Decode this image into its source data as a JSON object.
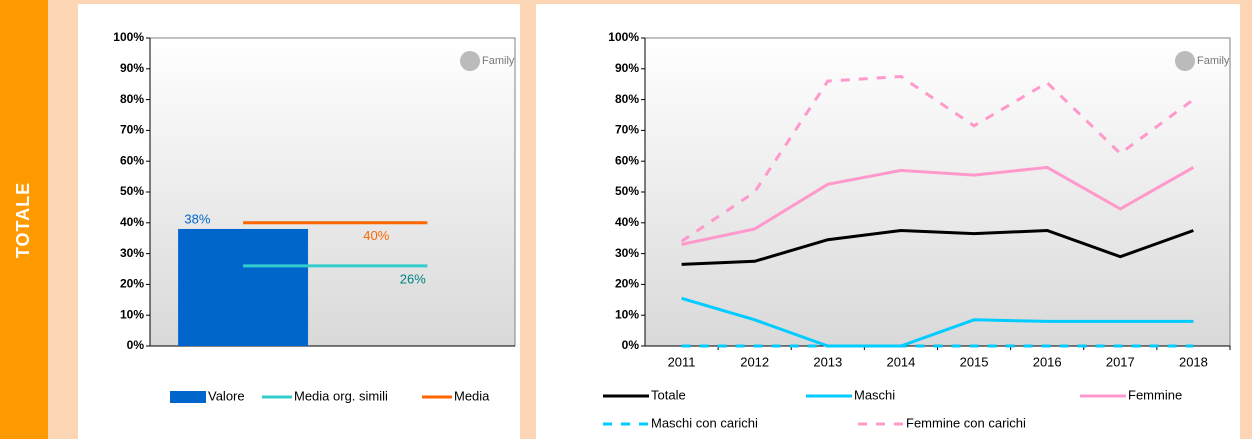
{
  "section": "TOTALE",
  "chart_data": [
    {
      "type": "bar",
      "logo": "Family",
      "categories": [
        null
      ],
      "series": [
        {
          "name": "Valore",
          "style": "bar",
          "color": "#0066cc",
          "values": [
            38
          ],
          "value_labels": [
            "38%"
          ]
        },
        {
          "name": "Media org. simili",
          "style": "hline",
          "color": "#33cccc",
          "label_color": "#008080",
          "values": [
            26
          ],
          "value_labels": [
            "26%"
          ]
        },
        {
          "name": "Media",
          "style": "hline",
          "color": "#ff6600",
          "values": [
            40
          ],
          "value_labels": [
            "40%"
          ]
        }
      ],
      "ylim": [
        0,
        100
      ],
      "yticks": [
        {
          "value": 0,
          "label": "0%"
        },
        {
          "value": 10,
          "label": "10%"
        },
        {
          "value": 20,
          "label": "20%"
        },
        {
          "value": 30,
          "label": "30%"
        },
        {
          "value": 40,
          "label": "40%"
        },
        {
          "value": 50,
          "label": "50%"
        },
        {
          "value": 60,
          "label": "60%"
        },
        {
          "value": 70,
          "label": "70%"
        },
        {
          "value": 80,
          "label": "80%"
        },
        {
          "value": 90,
          "label": "90%"
        },
        {
          "value": 100,
          "label": "100%"
        }
      ],
      "grid": false
    },
    {
      "type": "line",
      "logo": "Family",
      "categories": [
        "2011",
        "2012",
        "2013",
        "2014",
        "2015",
        "2016",
        "2017",
        "2018"
      ],
      "series": [
        {
          "name": "Totale",
          "color": "#000000",
          "dashed": false,
          "values": [
            26.5,
            27.5,
            34.5,
            37.5,
            36.5,
            37.5,
            29,
            37.5
          ]
        },
        {
          "name": "Maschi",
          "color": "#00ccff",
          "dashed": false,
          "values": [
            15.5,
            8.5,
            0,
            0,
            8.5,
            8,
            8,
            8
          ]
        },
        {
          "name": "Femmine",
          "color": "#ff99cc",
          "dashed": false,
          "values": [
            33,
            38,
            52.5,
            57,
            55.5,
            58,
            44.5,
            58
          ]
        },
        {
          "name": "Maschi con carichi",
          "color": "#00ccff",
          "dashed": true,
          "values": [
            0,
            0,
            0,
            0,
            0,
            0,
            0,
            0
          ]
        },
        {
          "name": "Femmine con carichi",
          "color": "#ff99cc",
          "dashed": true,
          "values": [
            34,
            50,
            86,
            87.5,
            71.5,
            85.5,
            62.5,
            80
          ]
        }
      ],
      "ylim": [
        0,
        100
      ],
      "yticks": [
        {
          "value": 0,
          "label": "0%"
        },
        {
          "value": 10,
          "label": "10%"
        },
        {
          "value": 20,
          "label": "20%"
        },
        {
          "value": 30,
          "label": "30%"
        },
        {
          "value": 40,
          "label": "40%"
        },
        {
          "value": 50,
          "label": "50%"
        },
        {
          "value": 60,
          "label": "60%"
        },
        {
          "value": 70,
          "label": "70%"
        },
        {
          "value": 80,
          "label": "80%"
        },
        {
          "value": 90,
          "label": "90%"
        },
        {
          "value": 100,
          "label": "100%"
        }
      ],
      "grid": false
    }
  ]
}
